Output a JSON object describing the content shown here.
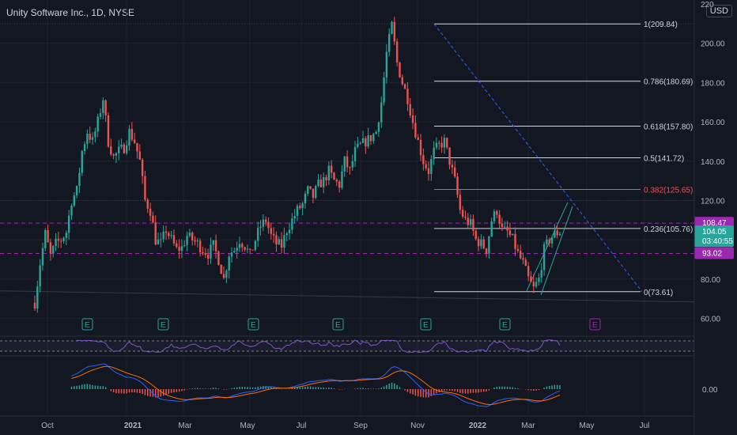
{
  "header": {
    "title": "Unity Software Inc., 1D, NYSE",
    "currency": "USD"
  },
  "colors": {
    "background": "#131722",
    "up": "#26a69a",
    "down": "#ef5350",
    "fib_line": "#d1d4dc",
    "fib_highlight": "#ef5350",
    "trendline": "#2962ff",
    "channel": "#26a69a",
    "hline_dashed": "#9c27b0",
    "rsi_line": "#7e57c2",
    "macd_line": "#2962ff",
    "signal_line": "#ff6d00",
    "earnings_badge": "#26a69a",
    "earnings_badge_future": "#9c27b0",
    "price_badge_current": "#26a69a",
    "price_badge_level": "#9c27b0"
  },
  "chart_data": {
    "type": "candlestick",
    "x_axis_labels": [
      "Oct",
      "2021",
      "Mar",
      "May",
      "Jul",
      "Sep",
      "Nov",
      "2022",
      "Mar",
      "May",
      "Jul"
    ],
    "y_axis_ticks": [
      60,
      80,
      100,
      120,
      140,
      160,
      180,
      200
    ],
    "y_axis_top_label": "220",
    "ylim": [
      53,
      222
    ],
    "price_points": [
      [
        0,
        68
      ],
      [
        2,
        88
      ],
      [
        4,
        103
      ],
      [
        6,
        92
      ],
      [
        8,
        98
      ],
      [
        10,
        100
      ],
      [
        12,
        104
      ],
      [
        14,
        120
      ],
      [
        16,
        125
      ],
      [
        18,
        145
      ],
      [
        20,
        155
      ],
      [
        22,
        150
      ],
      [
        24,
        160
      ],
      [
        26,
        172
      ],
      [
        28,
        150
      ],
      [
        30,
        142
      ],
      [
        32,
        145
      ],
      [
        34,
        147
      ],
      [
        36,
        155
      ],
      [
        38,
        150
      ],
      [
        40,
        140
      ],
      [
        42,
        120
      ],
      [
        44,
        115
      ],
      [
        46,
        100
      ],
      [
        48,
        98
      ],
      [
        50,
        105
      ],
      [
        52,
        100
      ],
      [
        54,
        95
      ],
      [
        56,
        96
      ],
      [
        58,
        102
      ],
      [
        60,
        100
      ],
      [
        62,
        98
      ],
      [
        64,
        95
      ],
      [
        66,
        93
      ],
      [
        68,
        97
      ],
      [
        70,
        90
      ],
      [
        72,
        80
      ],
      [
        74,
        93
      ],
      [
        76,
        95
      ],
      [
        78,
        100
      ],
      [
        80,
        97
      ],
      [
        82,
        92
      ],
      [
        84,
        100
      ],
      [
        86,
        107
      ],
      [
        88,
        110
      ],
      [
        90,
        102
      ],
      [
        92,
        98
      ],
      [
        94,
        97
      ],
      [
        96,
        105
      ],
      [
        98,
        110
      ],
      [
        100,
        115
      ],
      [
        102,
        118
      ],
      [
        104,
        125
      ],
      [
        106,
        122
      ],
      [
        108,
        128
      ],
      [
        110,
        130
      ],
      [
        112,
        135
      ],
      [
        114,
        130
      ],
      [
        116,
        128
      ],
      [
        118,
        140
      ],
      [
        120,
        135
      ],
      [
        122,
        145
      ],
      [
        124,
        148
      ],
      [
        126,
        150
      ],
      [
        128,
        152
      ],
      [
        130,
        155
      ],
      [
        132,
        170
      ],
      [
        134,
        195
      ],
      [
        136,
        209
      ],
      [
        138,
        190
      ],
      [
        140,
        180
      ],
      [
        142,
        172
      ],
      [
        144,
        160
      ],
      [
        146,
        150
      ],
      [
        148,
        140
      ],
      [
        150,
        135
      ],
      [
        152,
        145
      ],
      [
        154,
        148
      ],
      [
        156,
        150
      ],
      [
        158,
        140
      ],
      [
        160,
        130
      ],
      [
        162,
        115
      ],
      [
        164,
        110
      ],
      [
        166,
        108
      ],
      [
        168,
        100
      ],
      [
        170,
        98
      ],
      [
        172,
        95
      ],
      [
        174,
        110
      ],
      [
        176,
        115
      ],
      [
        178,
        105
      ],
      [
        180,
        104
      ],
      [
        182,
        100
      ],
      [
        184,
        93
      ],
      [
        186,
        88
      ],
      [
        188,
        80
      ],
      [
        190,
        75
      ],
      [
        192,
        80
      ],
      [
        194,
        95
      ],
      [
        196,
        100
      ],
      [
        198,
        103
      ],
      [
        200,
        104.05
      ]
    ],
    "fibonacci": [
      {
        "label": "1(209.84)",
        "value": 209.84
      },
      {
        "label": "0.786(180.69)",
        "value": 180.69
      },
      {
        "label": "0.618(157.80)",
        "value": 157.8
      },
      {
        "label": "0.5(141.72)",
        "value": 141.72
      },
      {
        "label": "0.382(125.65)",
        "value": 125.65,
        "highlight": true
      },
      {
        "label": "0.236(105.76)",
        "value": 105.76
      },
      {
        "label": "0(73.61)",
        "value": 73.61
      }
    ],
    "horizontal_levels": [
      {
        "value": 108.47,
        "label": "108.47"
      },
      {
        "value": 93.02,
        "label": "93.02"
      }
    ],
    "current_price": {
      "value": 104.05,
      "label": "104.05",
      "timer": "03:40:55"
    },
    "earnings_marker": "E",
    "macd_panel": {
      "tick_label": "0.00"
    }
  }
}
